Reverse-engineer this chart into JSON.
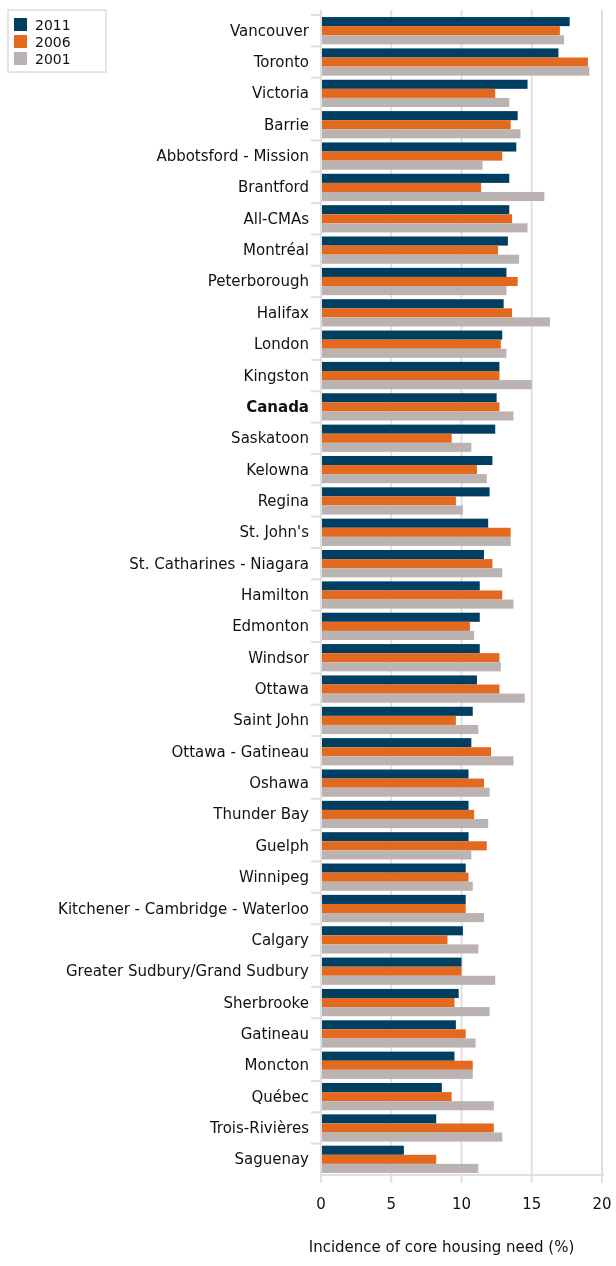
{
  "chart_data": {
    "type": "bar",
    "orientation": "horizontal",
    "xlabel": "Incidence of core housing need (%)",
    "categories": [
      "Vancouver",
      "Toronto",
      "Victoria",
      "Barrie",
      "Abbotsford - Mission",
      "Brantford",
      "All-CMAs",
      "Montréal",
      "Peterborough",
      "Halifax",
      "London",
      "Kingston",
      "Canada",
      "Saskatoon",
      "Kelowna",
      "Regina",
      "St. John's",
      "St. Catharines - Niagara",
      "Hamilton",
      "Edmonton",
      "Windsor",
      "Ottawa",
      "Saint John",
      "Ottawa - Gatineau",
      "Oshawa",
      "Thunder Bay",
      "Guelph",
      "Winnipeg",
      "Kitchener - Cambridge - Waterloo",
      "Calgary",
      "Greater Sudbury/Grand Sudbury",
      "Sherbrooke",
      "Gatineau",
      "Moncton",
      "Québec",
      "Trois-Rivières",
      "Saguenay"
    ],
    "series": [
      {
        "name": "2011",
        "color": "#003f62",
        "values": [
          17.7,
          16.9,
          14.7,
          14.0,
          13.9,
          13.4,
          13.4,
          13.3,
          13.2,
          13.0,
          12.9,
          12.7,
          12.5,
          12.4,
          12.2,
          12.0,
          11.9,
          11.6,
          11.3,
          11.3,
          11.3,
          11.1,
          10.8,
          10.7,
          10.5,
          10.5,
          10.5,
          10.3,
          10.3,
          10.1,
          10.0,
          9.8,
          9.6,
          9.5,
          8.6,
          8.2,
          5.9
        ]
      },
      {
        "name": "2006",
        "color": "#e3691f",
        "values": [
          17.0,
          19.0,
          12.4,
          13.5,
          12.9,
          11.4,
          13.6,
          12.6,
          14.0,
          13.6,
          12.8,
          12.7,
          12.7,
          9.3,
          11.1,
          9.6,
          13.5,
          12.2,
          12.9,
          10.6,
          12.7,
          12.7,
          9.6,
          12.1,
          11.6,
          10.9,
          11.8,
          10.5,
          10.3,
          9.0,
          10.0,
          9.5,
          10.3,
          10.8,
          9.3,
          12.3,
          8.2
        ]
      },
      {
        "name": "2001",
        "color": "#bbb3b2",
        "values": [
          17.3,
          19.1,
          13.4,
          14.2,
          11.5,
          15.9,
          14.7,
          14.1,
          13.2,
          16.3,
          13.2,
          15.0,
          13.7,
          10.7,
          11.8,
          10.1,
          13.5,
          12.9,
          13.7,
          10.9,
          12.8,
          14.5,
          11.2,
          13.7,
          12.0,
          11.9,
          10.7,
          10.8,
          11.6,
          11.2,
          12.4,
          12.0,
          11.0,
          10.8,
          12.3,
          12.9,
          11.2
        ]
      }
    ],
    "xlim": [
      0,
      20
    ],
    "xticks": [
      0,
      5,
      10,
      15,
      20
    ],
    "grid": "x",
    "legend": "top left"
  }
}
